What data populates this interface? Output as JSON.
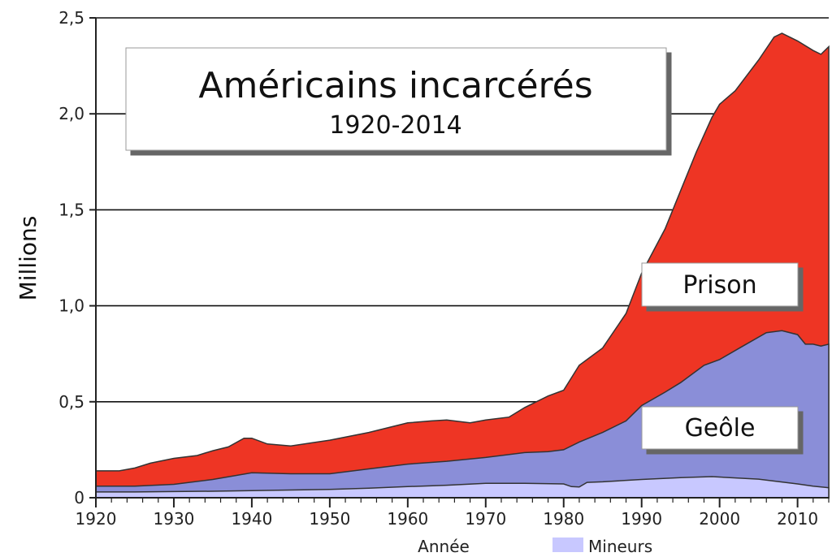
{
  "chart_data": {
    "type": "area",
    "title": "Américains incarcérés",
    "subtitle": "1920-2014",
    "xlabel": "Année",
    "ylabel": "Millions",
    "xlim": [
      1920,
      2014
    ],
    "ylim": [
      0,
      2.5
    ],
    "x_ticks": [
      1920,
      1930,
      1940,
      1950,
      1960,
      1970,
      1980,
      1990,
      2000,
      2010
    ],
    "y_ticks": [
      {
        "value": 0,
        "label": "0"
      },
      {
        "value": 0.5,
        "label": "0,5"
      },
      {
        "value": 1.0,
        "label": "1,0"
      },
      {
        "value": 1.5,
        "label": "1,5"
      },
      {
        "value": 2.0,
        "label": "2,0"
      },
      {
        "value": 2.5,
        "label": "2,5"
      }
    ],
    "grid": "horizontal",
    "stacked": true,
    "series": [
      {
        "name": "Mineurs",
        "color": "#c8c8ff",
        "points": [
          [
            1920,
            0.03
          ],
          [
            1925,
            0.03
          ],
          [
            1930,
            0.032
          ],
          [
            1935,
            0.034
          ],
          [
            1940,
            0.037
          ],
          [
            1945,
            0.04
          ],
          [
            1950,
            0.043
          ],
          [
            1955,
            0.05
          ],
          [
            1960,
            0.058
          ],
          [
            1965,
            0.065
          ],
          [
            1970,
            0.075
          ],
          [
            1975,
            0.075
          ],
          [
            1980,
            0.072
          ],
          [
            1981,
            0.058
          ],
          [
            1982,
            0.056
          ],
          [
            1983,
            0.08
          ],
          [
            1985,
            0.083
          ],
          [
            1990,
            0.095
          ],
          [
            1995,
            0.105
          ],
          [
            1999,
            0.11
          ],
          [
            2005,
            0.097
          ],
          [
            2010,
            0.072
          ],
          [
            2012,
            0.06
          ],
          [
            2014,
            0.052
          ]
        ]
      },
      {
        "name": "Geôle",
        "color": "#8a8ed8",
        "points": [
          [
            1920,
            0.06
          ],
          [
            1925,
            0.06
          ],
          [
            1930,
            0.07
          ],
          [
            1935,
            0.095
          ],
          [
            1940,
            0.13
          ],
          [
            1945,
            0.125
          ],
          [
            1950,
            0.125
          ],
          [
            1955,
            0.15
          ],
          [
            1960,
            0.175
          ],
          [
            1965,
            0.19
          ],
          [
            1970,
            0.21
          ],
          [
            1975,
            0.235
          ],
          [
            1978,
            0.24
          ],
          [
            1980,
            0.25
          ],
          [
            1982,
            0.29
          ],
          [
            1985,
            0.34
          ],
          [
            1988,
            0.4
          ],
          [
            1990,
            0.48
          ],
          [
            1993,
            0.55
          ],
          [
            1995,
            0.6
          ],
          [
            1998,
            0.69
          ],
          [
            2000,
            0.72
          ],
          [
            2003,
            0.79
          ],
          [
            2006,
            0.86
          ],
          [
            2008,
            0.87
          ],
          [
            2010,
            0.85
          ],
          [
            2011,
            0.8
          ],
          [
            2012,
            0.8
          ],
          [
            2013,
            0.79
          ],
          [
            2014,
            0.8
          ]
        ]
      },
      {
        "name": "Prison",
        "color": "#ee3524",
        "points": [
          [
            1920,
            0.14
          ],
          [
            1923,
            0.14
          ],
          [
            1925,
            0.155
          ],
          [
            1927,
            0.18
          ],
          [
            1930,
            0.205
          ],
          [
            1933,
            0.22
          ],
          [
            1935,
            0.245
          ],
          [
            1937,
            0.265
          ],
          [
            1939,
            0.31
          ],
          [
            1940,
            0.31
          ],
          [
            1942,
            0.28
          ],
          [
            1945,
            0.27
          ],
          [
            1950,
            0.3
          ],
          [
            1955,
            0.34
          ],
          [
            1960,
            0.39
          ],
          [
            1963,
            0.4
          ],
          [
            1965,
            0.405
          ],
          [
            1968,
            0.39
          ],
          [
            1970,
            0.405
          ],
          [
            1973,
            0.42
          ],
          [
            1975,
            0.47
          ],
          [
            1978,
            0.53
          ],
          [
            1980,
            0.56
          ],
          [
            1982,
            0.69
          ],
          [
            1985,
            0.78
          ],
          [
            1988,
            0.96
          ],
          [
            1990,
            1.17
          ],
          [
            1993,
            1.4
          ],
          [
            1995,
            1.6
          ],
          [
            1997,
            1.8
          ],
          [
            1999,
            1.98
          ],
          [
            2000,
            2.05
          ],
          [
            2002,
            2.12
          ],
          [
            2005,
            2.28
          ],
          [
            2007,
            2.4
          ],
          [
            2008,
            2.42
          ],
          [
            2010,
            2.38
          ],
          [
            2012,
            2.33
          ],
          [
            2013,
            2.31
          ],
          [
            2014,
            2.35
          ]
        ]
      }
    ],
    "annotations": [
      {
        "text": "Prison",
        "series": "Prison"
      },
      {
        "text": "Geôle",
        "series": "Geôle"
      }
    ],
    "legend": [
      {
        "label": "Mineurs",
        "color": "#c8c8ff",
        "placement": "bottom-right"
      }
    ]
  }
}
